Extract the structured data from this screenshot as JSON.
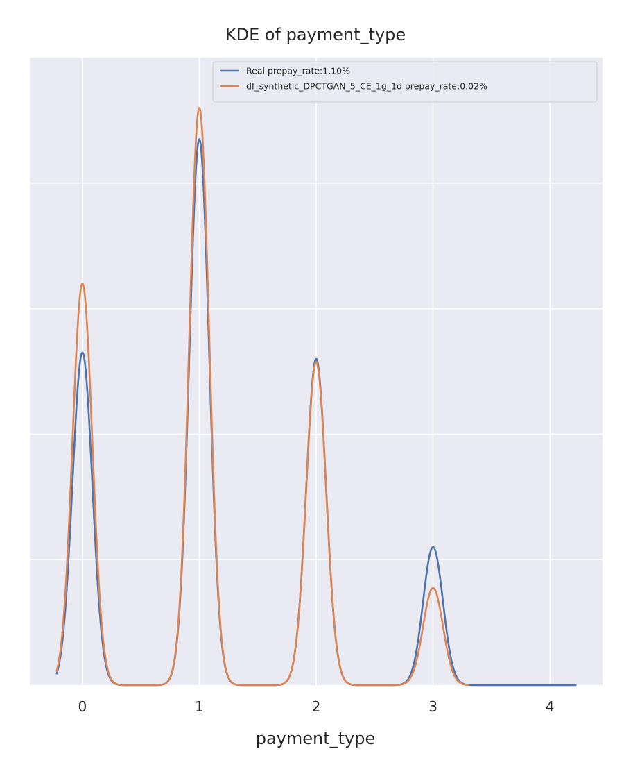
{
  "chart_data": {
    "type": "line",
    "title": "KDE of payment_type",
    "xlabel": "payment_type",
    "ylabel": "",
    "xlim": [
      -0.45,
      4.45
    ],
    "ylim": [
      0,
      1.0
    ],
    "x_ticks": [
      "0",
      "1",
      "2",
      "3",
      "4"
    ],
    "y_gridlines": [
      0.2,
      0.4,
      0.6,
      0.8
    ],
    "grid": true,
    "legend_position": "top-right",
    "background_color": "#eaeaf2",
    "series": [
      {
        "name": "Real prepay_rate:1.10%",
        "color": "#4c72b0",
        "peaks": [
          {
            "x": 0,
            "y": 0.53
          },
          {
            "x": 1,
            "y": 0.87
          },
          {
            "x": 2,
            "y": 0.52
          },
          {
            "x": 3,
            "y": 0.22
          }
        ],
        "bandwidth": 0.085,
        "x_range": [
          -0.22,
          4.22
        ]
      },
      {
        "name": "df_synthetic_DPCTGAN_5_CE_1g_1d prepay_rate:0.02%",
        "color": "#dd8452",
        "peaks": [
          {
            "x": 0,
            "y": 0.64
          },
          {
            "x": 1,
            "y": 0.92
          },
          {
            "x": 2,
            "y": 0.515
          },
          {
            "x": 3,
            "y": 0.155
          }
        ],
        "bandwidth": 0.085,
        "x_range": [
          -0.22,
          3.3
        ]
      }
    ]
  }
}
